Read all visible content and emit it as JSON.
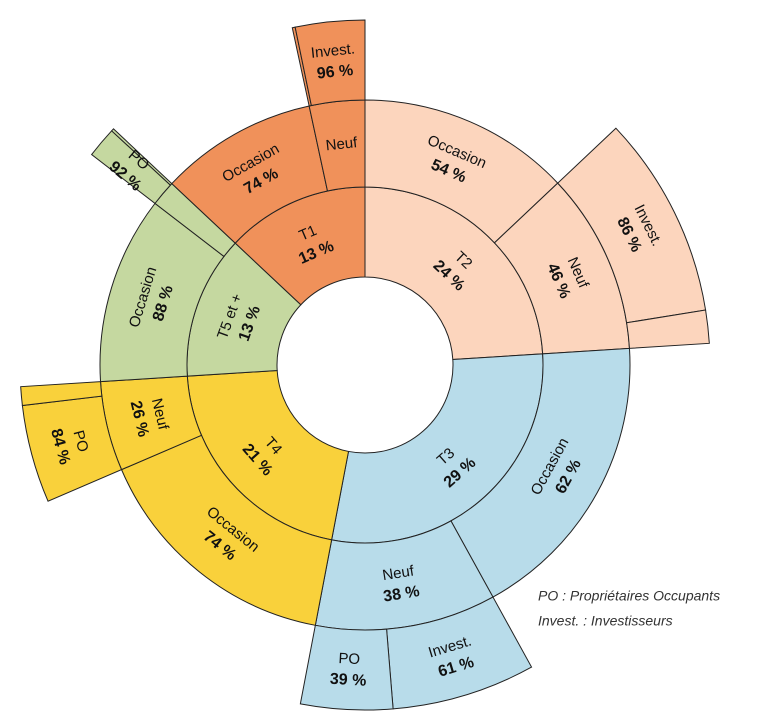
{
  "chart_data": {
    "type": "sunburst",
    "legend": [
      "PO : Propriétaires Occupants",
      "Invest. : Investisseurs"
    ],
    "nodes": [
      {
        "name": "T2",
        "value": 24,
        "value_label": "24 %",
        "color": "#fcd5bd",
        "children": [
          {
            "name": "Occasion",
            "value": 54,
            "value_label": "54 %"
          },
          {
            "name": "Neuf",
            "value": 46,
            "value_label": "46 %",
            "children": [
              {
                "name": "Invest.",
                "value": 86,
                "value_label": "86 %"
              },
              {
                "name": null,
                "value": 14
              }
            ]
          }
        ]
      },
      {
        "name": "T3",
        "value": 29,
        "value_label": "29 %",
        "color": "#b8dcea",
        "children": [
          {
            "name": "Occasion",
            "value": 62,
            "value_label": "62 %"
          },
          {
            "name": "Neuf",
            "value": 38,
            "value_label": "38 %",
            "children": [
              {
                "name": "Invest.",
                "value": 61,
                "value_label": "61 %"
              },
              {
                "name": "PO",
                "value": 39,
                "value_label": "39 %"
              }
            ]
          }
        ]
      },
      {
        "name": "T4",
        "value": 21,
        "value_label": "21 %",
        "color": "#f9d13b",
        "children": [
          {
            "name": "Occasion",
            "value": 74,
            "value_label": "74 %"
          },
          {
            "name": "Neuf",
            "value": 26,
            "value_label": "26 %",
            "children": [
              {
                "name": "PO",
                "value": 84,
                "value_label": "84 %"
              },
              {
                "name": null,
                "value": 16
              }
            ]
          }
        ]
      },
      {
        "name": "T5 et +",
        "value": 13,
        "value_label": "13 %",
        "color": "#c5d8a0",
        "children": [
          {
            "name": "Occasion",
            "value": 88,
            "value_label": "88 %"
          },
          {
            "name": null,
            "value": 12,
            "children": [
              {
                "name": "PO",
                "value": 92,
                "value_label": "92 %"
              },
              {
                "name": null,
                "value": 8
              }
            ]
          }
        ]
      },
      {
        "name": "T1",
        "value": 13,
        "value_label": "13 %",
        "color": "#f0915a",
        "children": [
          {
            "name": "Occasion",
            "value": 74,
            "value_label": "74 %"
          },
          {
            "name": "Neuf",
            "value": 26,
            "children": [
              {
                "name": null,
                "value": 4
              },
              {
                "name": "Invest.",
                "value": 96,
                "value_label": "96 %"
              }
            ]
          }
        ]
      }
    ]
  }
}
